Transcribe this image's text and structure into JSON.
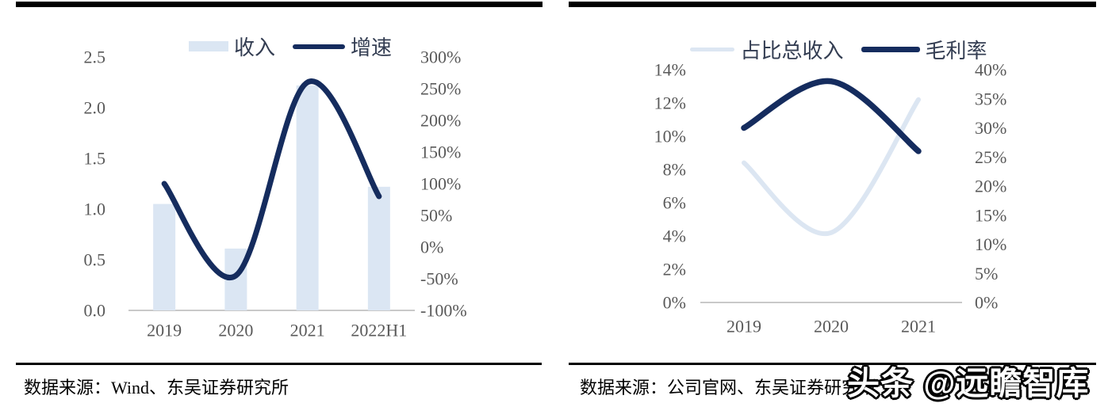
{
  "page": {
    "background": "#ffffff",
    "watermark": "头条 @远瞻智库"
  },
  "colors": {
    "navy": "#152C5E",
    "light_blue": "#DBE6F3",
    "axis_text": "#595959",
    "axis_line": "#C9C9C9",
    "divider": "#000000"
  },
  "chart_data": [
    {
      "type": "bar+line",
      "legend_position": "top",
      "grid": false,
      "categories": [
        "2019",
        "2020",
        "2021",
        "2022H1"
      ],
      "series": [
        {
          "name": "收入",
          "type": "bar",
          "axis": "left",
          "color": "#DBE6F3",
          "values": [
            1.05,
            0.61,
            2.22,
            1.22
          ]
        },
        {
          "name": "增速",
          "type": "line",
          "axis": "right",
          "color": "#152C5E",
          "smooth": true,
          "unit": "%",
          "values": [
            100,
            -45,
            260,
            80
          ]
        }
      ],
      "left_axis": {
        "min": 0,
        "max": 2.5,
        "ticks": [
          "0.0",
          "0.5",
          "1.0",
          "1.5",
          "2.0",
          "2.5"
        ]
      },
      "right_axis": {
        "min": -100,
        "max": 300,
        "ticks": [
          "-100%",
          "-50%",
          "0%",
          "50%",
          "100%",
          "150%",
          "200%",
          "250%",
          "300%"
        ]
      },
      "source": "数据来源：Wind、东吴证券研究所"
    },
    {
      "type": "line",
      "legend_position": "top",
      "grid": false,
      "categories": [
        "2019",
        "2020",
        "2021"
      ],
      "series": [
        {
          "name": "占比总收入",
          "type": "line",
          "axis": "left",
          "color": "#DCE6F2",
          "smooth": true,
          "unit": "%",
          "values": [
            8.4,
            4.2,
            12.2
          ]
        },
        {
          "name": "毛利率",
          "type": "line",
          "axis": "right",
          "color": "#152C5E",
          "smooth": true,
          "unit": "%",
          "values": [
            30,
            38,
            26
          ]
        }
      ],
      "left_axis": {
        "min": 0,
        "max": 14,
        "ticks": [
          "0%",
          "2%",
          "4%",
          "6%",
          "8%",
          "10%",
          "12%",
          "14%"
        ]
      },
      "right_axis": {
        "min": 0,
        "max": 40,
        "ticks": [
          "0%",
          "5%",
          "10%",
          "15%",
          "20%",
          "25%",
          "30%",
          "35%",
          "40%"
        ]
      },
      "source": "数据来源：公司官网、东吴证券研究所"
    }
  ]
}
